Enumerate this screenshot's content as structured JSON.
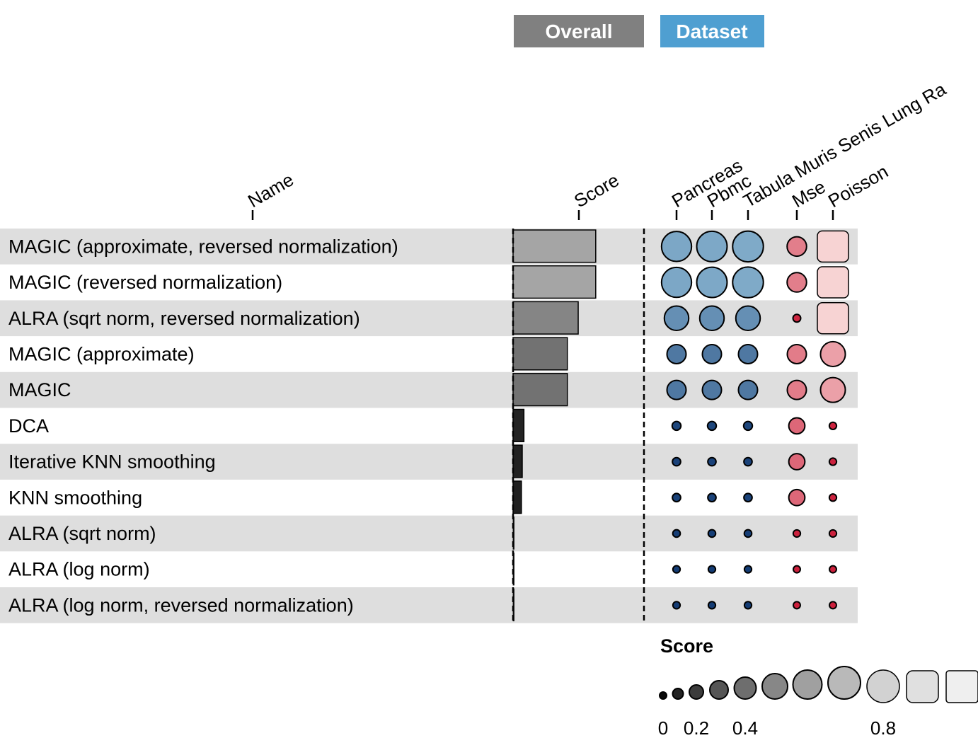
{
  "chart_data": {
    "type": "table",
    "groups": [
      {
        "label": "Overall",
        "color": "#808080"
      },
      {
        "label": "Dataset",
        "color": "#4f9fd1"
      }
    ],
    "columns": {
      "name": "Name",
      "score": "Score",
      "datasets": [
        "Pancreas",
        "Pbmc",
        "Tabula Muris Senis Lung Ra",
        "Mse",
        "Poisson"
      ]
    },
    "rows": [
      {
        "name": "MAGIC (approximate, reversed normalization)",
        "score": 0.99,
        "values": [
          0.77,
          0.78,
          0.79,
          0.48,
          0.85
        ]
      },
      {
        "name": "MAGIC (reversed normalization)",
        "score": 0.99,
        "values": [
          0.77,
          0.78,
          0.79,
          0.48,
          0.85
        ]
      },
      {
        "name": "ALRA (sqrt norm, reversed normalization)",
        "score": 0.78,
        "values": [
          0.62,
          0.62,
          0.62,
          0.1,
          0.85
        ]
      },
      {
        "name": "MAGIC (approximate)",
        "score": 0.65,
        "values": [
          0.47,
          0.47,
          0.47,
          0.47,
          0.63
        ]
      },
      {
        "name": "MAGIC",
        "score": 0.65,
        "values": [
          0.47,
          0.47,
          0.47,
          0.47,
          0.63
        ]
      },
      {
        "name": "DCA",
        "score": 0.13,
        "values": [
          0.14,
          0.14,
          0.14,
          0.38,
          0.08
        ]
      },
      {
        "name": "Iterative KNN smoothing",
        "score": 0.11,
        "values": [
          0.12,
          0.12,
          0.12,
          0.38,
          0.08
        ]
      },
      {
        "name": "KNN smoothing",
        "score": 0.1,
        "values": [
          0.12,
          0.12,
          0.12,
          0.38,
          0.08
        ]
      },
      {
        "name": "ALRA (sqrt norm)",
        "score": 0.01,
        "values": [
          0.09,
          0.09,
          0.09,
          0.08,
          0.08
        ]
      },
      {
        "name": "ALRA (log norm)",
        "score": 0.0,
        "values": [
          0.08,
          0.08,
          0.08,
          0.07,
          0.07
        ]
      },
      {
        "name": "ALRA (log norm, reversed normalization)",
        "score": 0.0,
        "values": [
          0.08,
          0.08,
          0.08,
          0.07,
          0.07
        ]
      }
    ],
    "legend": {
      "title": "Score",
      "tick_labels": [
        "0",
        "0.2",
        "0.4",
        "0.8"
      ],
      "tick_values": [
        0,
        0.2,
        0.4,
        0.8
      ]
    },
    "colors": {
      "row_stripe": "#dedede",
      "overall_bar_low": "#111111",
      "overall_bar_high": "#a6a6a6",
      "blue_low": "#08306b",
      "blue_high": "#9ecae1",
      "red_low": "#c8102e",
      "red_high": "#fff5f0"
    }
  }
}
